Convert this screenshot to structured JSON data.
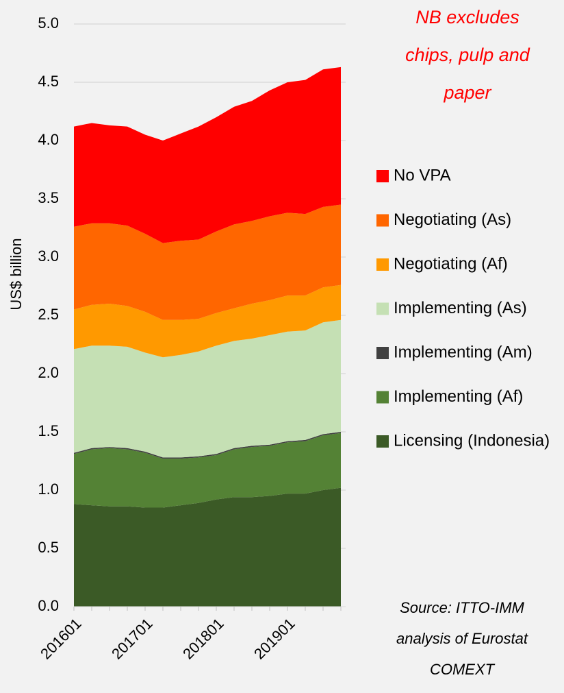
{
  "chart_data": {
    "type": "stacked_area",
    "y_label": "US$ billion",
    "annotation": [
      "NB excludes",
      "chips, pulp and",
      "paper"
    ],
    "source": [
      "Source: ITTO-IMM",
      "analysis of Eurostat",
      "COMEXT"
    ],
    "categories": [
      "201601",
      null,
      null,
      null,
      "201701",
      null,
      null,
      null,
      "201801",
      null,
      null,
      null,
      "201901",
      null,
      null,
      null
    ],
    "series": [
      {
        "name": "Licensing (Indonesia)",
        "color": "#3b5a26",
        "values": [
          0.88,
          0.87,
          0.86,
          0.86,
          0.85,
          0.85,
          0.87,
          0.89,
          0.92,
          0.94,
          0.94,
          0.95,
          0.97,
          0.97,
          1.0,
          1.02
        ]
      },
      {
        "name": "Implementing (Af)",
        "color": "#548235",
        "values": [
          0.43,
          0.48,
          0.5,
          0.49,
          0.47,
          0.42,
          0.4,
          0.39,
          0.38,
          0.41,
          0.43,
          0.43,
          0.44,
          0.45,
          0.47,
          0.47
        ]
      },
      {
        "name": "Implementing (Am)",
        "color": "#404040",
        "values": [
          0.01,
          0.01,
          0.01,
          0.01,
          0.01,
          0.01,
          0.01,
          0.01,
          0.01,
          0.01,
          0.01,
          0.01,
          0.01,
          0.01,
          0.01,
          0.01
        ]
      },
      {
        "name": "Implementing (As)",
        "color": "#c5e0b4",
        "values": [
          0.89,
          0.88,
          0.87,
          0.87,
          0.85,
          0.86,
          0.88,
          0.9,
          0.93,
          0.92,
          0.92,
          0.94,
          0.94,
          0.94,
          0.96,
          0.96
        ]
      },
      {
        "name": "Negotiating (Af)",
        "color": "#ff9900",
        "values": [
          0.34,
          0.35,
          0.36,
          0.35,
          0.35,
          0.32,
          0.3,
          0.28,
          0.28,
          0.28,
          0.3,
          0.3,
          0.31,
          0.3,
          0.3,
          0.3
        ]
      },
      {
        "name": "Negotiating (As)",
        "color": "#ff6600",
        "values": [
          0.71,
          0.7,
          0.69,
          0.69,
          0.67,
          0.66,
          0.68,
          0.68,
          0.7,
          0.72,
          0.71,
          0.72,
          0.71,
          0.7,
          0.69,
          0.69
        ]
      },
      {
        "name": "No VPA",
        "color": "#ff0000",
        "values": [
          0.86,
          0.86,
          0.84,
          0.85,
          0.85,
          0.88,
          0.92,
          0.97,
          0.98,
          1.01,
          1.03,
          1.08,
          1.12,
          1.15,
          1.18,
          1.18
        ]
      }
    ],
    "ylim": [
      0,
      5
    ],
    "yticks": [
      {
        "value": 0,
        "label": "0.0"
      },
      0.5,
      {
        "value": 1,
        "label": "1.0"
      },
      1.5,
      {
        "value": 2,
        "label": "2.0"
      },
      2.5,
      {
        "value": 3,
        "label": "3.0"
      },
      3.5,
      {
        "value": 4,
        "label": "4.0"
      },
      4.5,
      {
        "value": 5,
        "label": "5.0"
      }
    ],
    "grid": true,
    "legend": "right"
  }
}
